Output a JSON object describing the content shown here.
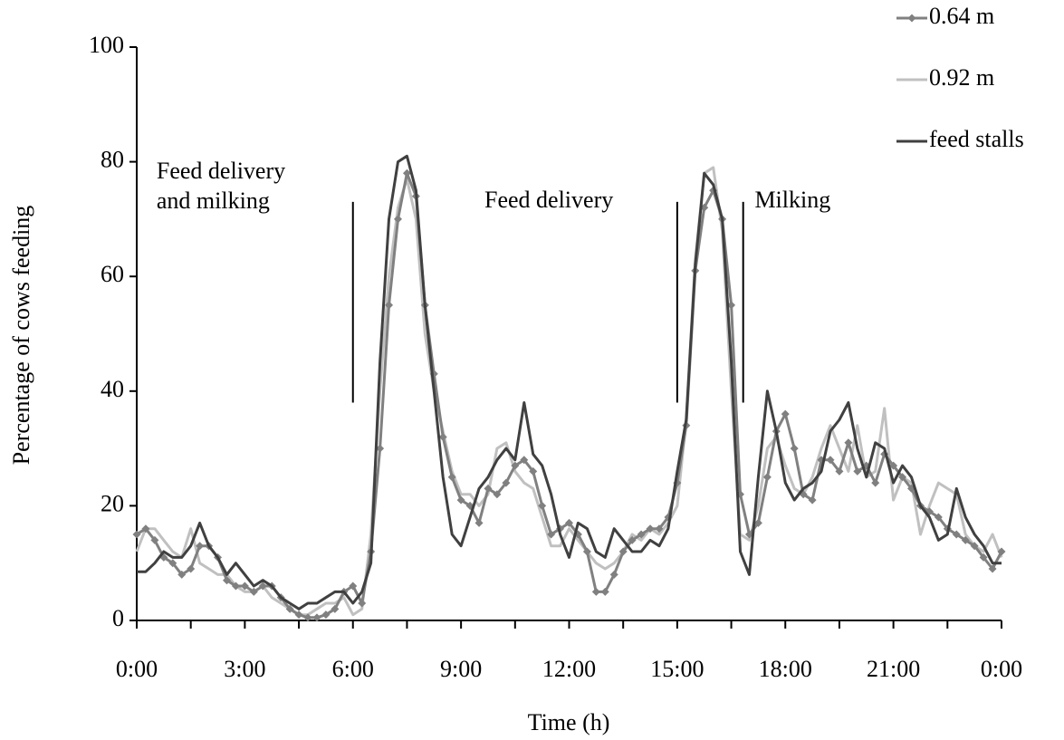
{
  "chart_data": {
    "type": "line",
    "xlabel": "Time (h)",
    "ylabel": "Percentage of cows feeding",
    "x": [
      0,
      0.25,
      0.5,
      0.75,
      1,
      1.25,
      1.5,
      1.75,
      2,
      2.25,
      2.5,
      2.75,
      3,
      3.25,
      3.5,
      3.75,
      4,
      4.25,
      4.5,
      4.75,
      5,
      5.25,
      5.5,
      5.75,
      6,
      6.25,
      6.5,
      6.75,
      7,
      7.25,
      7.5,
      7.75,
      8,
      8.25,
      8.5,
      8.75,
      9,
      9.25,
      9.5,
      9.75,
      10,
      10.25,
      10.5,
      10.75,
      11,
      11.25,
      11.5,
      11.75,
      12,
      12.25,
      12.5,
      12.75,
      13,
      13.25,
      13.5,
      13.75,
      14,
      14.25,
      14.5,
      14.75,
      15,
      15.25,
      15.5,
      15.75,
      16,
      16.25,
      16.5,
      16.75,
      17,
      17.25,
      17.5,
      17.75,
      18,
      18.25,
      18.5,
      18.75,
      19,
      19.25,
      19.5,
      19.75,
      20,
      20.25,
      20.5,
      20.75,
      21,
      21.25,
      21.5,
      21.75,
      22,
      22.25,
      22.5,
      22.75,
      23,
      23.25,
      23.5,
      23.75,
      24
    ],
    "series": [
      {
        "name": "0.64 m",
        "color": "#808080",
        "marker": "diamond",
        "values": [
          15,
          16,
          14,
          11,
          10,
          8,
          9,
          13,
          13,
          11,
          7,
          6,
          6,
          5,
          6,
          6,
          4,
          2,
          1,
          0.5,
          0.5,
          1,
          2,
          5,
          6,
          3,
          12,
          30,
          55,
          70,
          78,
          74,
          55,
          43,
          32,
          25,
          21,
          20,
          17,
          23,
          22,
          24,
          27,
          28,
          26,
          20,
          15,
          16,
          17,
          15,
          12,
          5,
          5,
          8,
          12,
          14,
          15,
          16,
          16,
          18,
          24,
          34,
          61,
          72,
          75,
          70,
          55,
          22,
          15,
          17,
          25,
          33,
          36,
          30,
          22,
          21,
          28,
          28,
          26,
          31,
          26,
          27,
          24,
          29,
          27,
          25,
          23,
          20,
          19,
          18,
          16,
          15,
          14,
          13,
          11,
          9,
          12
        ]
      },
      {
        "name": "0.92 m",
        "color": "#c0c0c0",
        "values": [
          12,
          16,
          16,
          14,
          12,
          11,
          16,
          10,
          9,
          8,
          8,
          6,
          5,
          5,
          6,
          4,
          3,
          2,
          1,
          1,
          2,
          3,
          3,
          4,
          1,
          2,
          15,
          40,
          60,
          72,
          77,
          70,
          50,
          40,
          33,
          26,
          22,
          22,
          20,
          22,
          30,
          31,
          26,
          24,
          23,
          18,
          13,
          13,
          16,
          14,
          12,
          10,
          9,
          10,
          12,
          15,
          14,
          16,
          15,
          17,
          20,
          35,
          63,
          78,
          79,
          68,
          40,
          15,
          14,
          20,
          30,
          32,
          27,
          23,
          22,
          25,
          30,
          34,
          30,
          26,
          34,
          25,
          26,
          37,
          21,
          25,
          24,
          15,
          20,
          24,
          23,
          22,
          15,
          13,
          12,
          15,
          11
        ]
      },
      {
        "name": "feed stalls",
        "color": "#404040",
        "values": [
          8.5,
          8.5,
          10,
          12,
          11,
          11,
          13,
          17,
          13,
          11,
          8,
          10,
          8,
          6,
          7,
          6,
          4,
          3,
          2,
          3,
          3,
          4,
          5,
          5,
          3,
          5,
          10,
          45,
          70,
          80,
          81,
          75,
          55,
          40,
          25,
          15,
          13,
          18,
          23,
          25,
          28,
          30,
          28,
          38,
          29,
          27,
          22,
          15,
          11,
          17,
          16,
          12,
          11,
          16,
          14,
          12,
          12,
          14,
          13,
          16,
          26,
          35,
          62,
          78,
          76,
          70,
          45,
          12,
          8,
          25,
          40,
          33,
          24,
          21,
          23,
          24,
          26,
          33,
          35,
          38,
          30,
          25,
          31,
          30,
          24,
          27,
          25,
          20,
          18,
          14,
          15,
          23,
          18,
          15,
          13,
          10,
          10
        ]
      }
    ],
    "xlim": [
      0,
      24
    ],
    "xticks": [
      {
        "value": 0,
        "label": "0:00"
      },
      {
        "value": 3,
        "label": "3:00"
      },
      {
        "value": 6,
        "label": "6:00"
      },
      {
        "value": 9,
        "label": "9:00"
      },
      {
        "value": 12,
        "label": "12:00"
      },
      {
        "value": 15,
        "label": "15:00"
      },
      {
        "value": 18,
        "label": "18:00"
      },
      {
        "value": 21,
        "label": "21:00"
      },
      {
        "value": 24,
        "label": "0:00"
      }
    ],
    "xminor": [
      1.5,
      4.5,
      7.5,
      10.5,
      13.5,
      16.5,
      19.5,
      22.5
    ],
    "ylim": [
      0,
      100
    ],
    "yticks": [
      0,
      20,
      40,
      60,
      80,
      100
    ],
    "legend": "top-right",
    "annotations": [
      {
        "lines": [
          "Feed delivery",
          "and milking"
        ],
        "x": 0.5,
        "y": 78
      },
      {
        "lines": [
          "Feed delivery"
        ],
        "x": 9.6,
        "y": 73
      },
      {
        "lines": [
          "Milking"
        ],
        "x": 17.1,
        "y": 73
      }
    ],
    "vlines": [
      {
        "x": 6,
        "y": [
          38,
          73
        ]
      },
      {
        "x": 15,
        "y": [
          38,
          73
        ]
      },
      {
        "x": 16.83,
        "y": [
          38,
          73
        ]
      }
    ]
  }
}
